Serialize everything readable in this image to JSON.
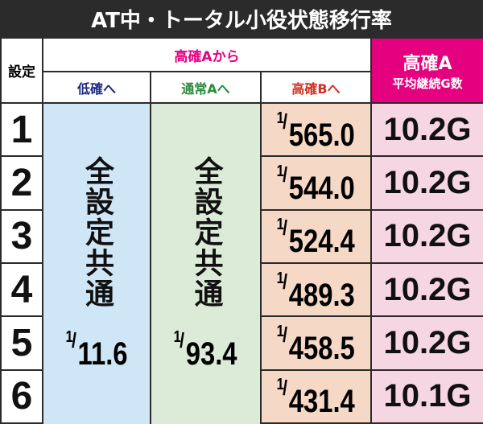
{
  "header": {
    "title": "AT中・トータル小役状態移行率"
  },
  "table": {
    "columns": {
      "setting": "設定",
      "group": "高確Aから",
      "low": "低確へ",
      "normal": "通常Aへ",
      "highB": "高確Bへ",
      "highA": "高確A",
      "highA_sub": "平均継続G数"
    },
    "low": {
      "note": "全設定共通",
      "num": "1",
      "den": "11.6"
    },
    "normal": {
      "note": "全設定共通",
      "num": "1",
      "den": "93.4"
    },
    "rows": [
      {
        "setting": "1",
        "num": "1",
        "den": "565.0",
        "games": "10.2G"
      },
      {
        "setting": "2",
        "num": "1",
        "den": "544.0",
        "games": "10.2G"
      },
      {
        "setting": "3",
        "num": "1",
        "den": "524.4",
        "games": "10.2G"
      },
      {
        "setting": "4",
        "num": "1",
        "den": "489.3",
        "games": "10.2G"
      },
      {
        "setting": "5",
        "num": "1",
        "den": "458.5",
        "games": "10.2G"
      },
      {
        "setting": "6",
        "num": "1",
        "den": "431.4",
        "games": "10.1G"
      }
    ]
  }
}
